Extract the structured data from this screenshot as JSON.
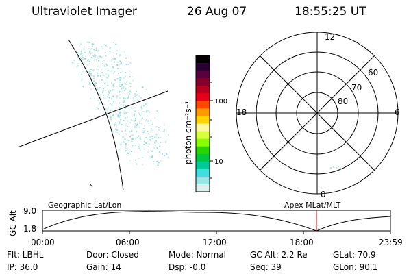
{
  "header": {
    "instrument": "Ultraviolet Imager",
    "date": "26 Aug 07",
    "time": "18:55:25 UT"
  },
  "colorbar": {
    "unit_label": "photon cm⁻²s⁻¹",
    "ticks": [
      "100",
      "10"
    ],
    "colors": [
      "#000000",
      "#2a0033",
      "#5a0040",
      "#85002a",
      "#b8001e",
      "#e8001a",
      "#ff4a00",
      "#ff9900",
      "#ffd400",
      "#fff7a0",
      "#d8ff3c",
      "#8aff00",
      "#2ad400",
      "#00c83c",
      "#00cc99",
      "#40dede",
      "#9ae6e6",
      "#dceeee"
    ]
  },
  "polar": {
    "mlt_labels": [
      "12",
      "18",
      "6",
      "0"
    ],
    "lat_labels": [
      "60",
      "70",
      "80"
    ]
  },
  "timeline": {
    "left_label": "Geographic Lat/Lon",
    "right_label": "Apex MLat/MLT",
    "axis_title": "GC Alt",
    "y_ticks": [
      "9.0",
      "1.8"
    ],
    "x_ticks": [
      "00:00",
      "06:00",
      "12:00",
      "18:00",
      "23:59"
    ],
    "marker_color": "#cc0000"
  },
  "status": {
    "filter": "Flt: LBHL",
    "ip": "IP: 36.0",
    "door": "Door: Closed",
    "gain": "Gain: 14",
    "mode": "Mode: Normal",
    "dsp": "Dsp:   -0.0",
    "gc_alt": "GC Alt: 2.2 Re",
    "seq": "Seq: 39",
    "glat": "GLat:  70.9",
    "glon": "GLon:  90.1"
  }
}
